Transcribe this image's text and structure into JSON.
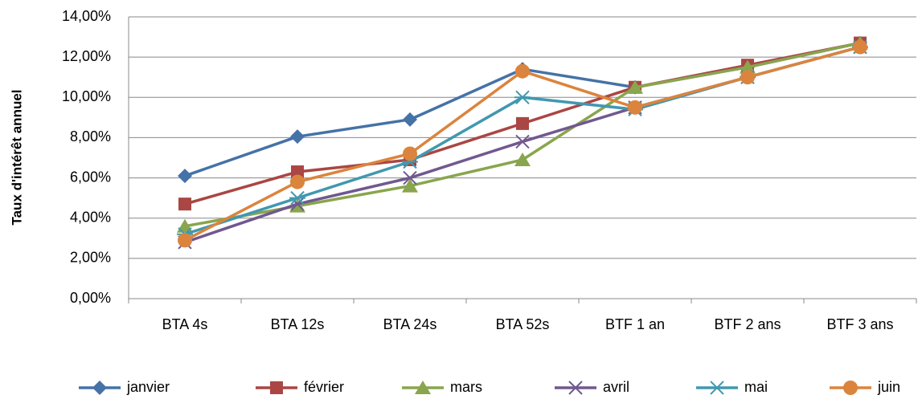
{
  "chart_data": {
    "type": "line",
    "y_label": "Taux d'intérêt annuel",
    "categories": [
      "BTA 4s",
      "BTA 12s",
      "BTA 24s",
      "BTA 52s",
      "BTF 1 an",
      "BTF 2 ans",
      "BTF 3 ans"
    ],
    "series": [
      {
        "name": "janvier",
        "color": "#4572a7",
        "marker": "diamond",
        "values": [
          6.1,
          8.05,
          8.9,
          11.4,
          10.5,
          11.5,
          12.7
        ]
      },
      {
        "name": "février",
        "color": "#aa4643",
        "marker": "square",
        "values": [
          4.7,
          6.3,
          6.9,
          8.7,
          10.5,
          11.6,
          12.7
        ]
      },
      {
        "name": "mars",
        "color": "#89a54e",
        "marker": "triangle",
        "values": [
          3.6,
          4.6,
          5.6,
          6.9,
          10.5,
          11.5,
          12.7
        ]
      },
      {
        "name": "avril",
        "color": "#71588f",
        "marker": "x",
        "values": [
          2.8,
          4.7,
          6.0,
          7.8,
          9.5,
          11.0,
          12.5
        ]
      },
      {
        "name": "mai",
        "color": "#4198af",
        "marker": "star",
        "values": [
          3.2,
          5.0,
          6.8,
          10.0,
          9.4,
          11.0,
          12.5
        ]
      },
      {
        "name": "juin",
        "color": "#db843d",
        "marker": "circle",
        "values": [
          2.9,
          5.8,
          7.2,
          11.3,
          9.5,
          11.0,
          12.5
        ]
      }
    ],
    "ylim": [
      0,
      14
    ],
    "yticks": [
      {
        "value": 0,
        "label": "0,00%"
      },
      {
        "value": 2,
        "label": "2,00%"
      },
      {
        "value": 4,
        "label": "4,00%"
      },
      {
        "value": 6,
        "label": "6,00%"
      },
      {
        "value": 8,
        "label": "8,00%"
      },
      {
        "value": 10,
        "label": "10,00%"
      },
      {
        "value": 12,
        "label": "12,00%"
      },
      {
        "value": 14,
        "label": "14,00%"
      }
    ],
    "grid": true,
    "legend": "bottom"
  }
}
